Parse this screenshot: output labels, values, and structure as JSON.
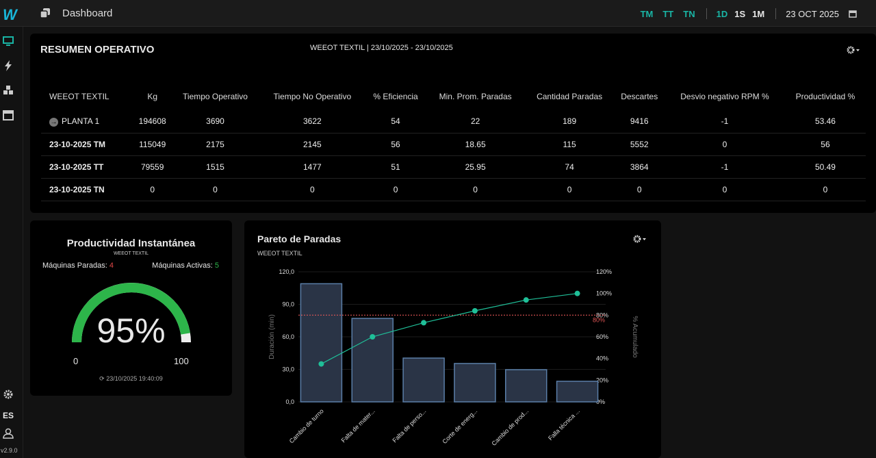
{
  "topbar": {
    "logo": "W",
    "title": "Dashboard",
    "shifts": [
      "TM",
      "TT",
      "TN"
    ],
    "ranges": [
      "1D",
      "1S",
      "1M"
    ],
    "active_range": "1D",
    "date": "23 OCT 2025",
    "accent": "#19b5a5"
  },
  "sidebar": {
    "icons": [
      "monitor-icon",
      "bolt-icon",
      "cubes-icon",
      "calendar-icon"
    ],
    "lang": "ES",
    "version": "v2.9.0"
  },
  "resumen": {
    "title": "RESUMEN OPERATIVO",
    "subtitle": "WEEOT TEXTIL | 23/10/2025 - 23/10/2025",
    "columns": [
      "WEEOT TEXTIL",
      "Kg",
      "Tiempo Operativo",
      "Tiempo No Operativo",
      "% Eficiencia",
      "Min. Prom. Paradas",
      "Cantidad Paradas",
      "Descartes",
      "Desvio negativo RPM %",
      "Productividad %"
    ],
    "rows": [
      [
        "PLANTA 1",
        "194608",
        "3690",
        "3622",
        "54",
        "22",
        "189",
        "9416",
        "-1",
        "53.46"
      ],
      [
        "23-10-2025 TM",
        "115049",
        "2175",
        "2145",
        "56",
        "18.65",
        "115",
        "5552",
        "0",
        "56"
      ],
      [
        "23-10-2025 TT",
        "79559",
        "1515",
        "1477",
        "51",
        "25.95",
        "74",
        "3864",
        "-1",
        "50.49"
      ],
      [
        "23-10-2025 TN",
        "0",
        "0",
        "0",
        "0",
        "0",
        "0",
        "0",
        "0",
        "0"
      ]
    ]
  },
  "productividad": {
    "title": "Productividad Instantánea",
    "subtitle": "WEEOT TEXTIL",
    "paradas_label": "Máquinas Paradas:",
    "paradas": "4",
    "activas_label": "Máquinas Activas:",
    "activas": "5",
    "value": 95,
    "value_text": "95%",
    "min": "0",
    "max": "100",
    "timestamp": "23/10/2025 19:40:09",
    "gauge_color": "#2db54a"
  },
  "chart_data": {
    "type": "bar",
    "title": "Pareto de Paradas",
    "subtitle": "WEEOT TEXTIL",
    "ylabel": "Duración (min)",
    "y2label": "% Acumulado",
    "categories": [
      "Cambio de turno",
      "Falta de mater...",
      "Falta de perso...",
      "Corte de energ...",
      "Cambio de prod...",
      "Falla técnica ..."
    ],
    "values": [
      109,
      77,
      40.4,
      35.4,
      29.7,
      19
    ],
    "cumulative_pct": [
      35,
      60,
      73,
      84,
      94,
      100
    ],
    "ylim": [
      0,
      120
    ],
    "y2lim": [
      0,
      120
    ],
    "yticks": [
      "0,0",
      "30,0",
      "60,0",
      "90,0",
      "120,0"
    ],
    "y2ticks": [
      "0%",
      "20%",
      "40%",
      "60%",
      "80%",
      "100%",
      "120%"
    ],
    "threshold_label": "80%",
    "threshold": 80,
    "bar_color": "#2a3446",
    "line_color": "#1fbf98",
    "threshold_color": "#e05555"
  }
}
